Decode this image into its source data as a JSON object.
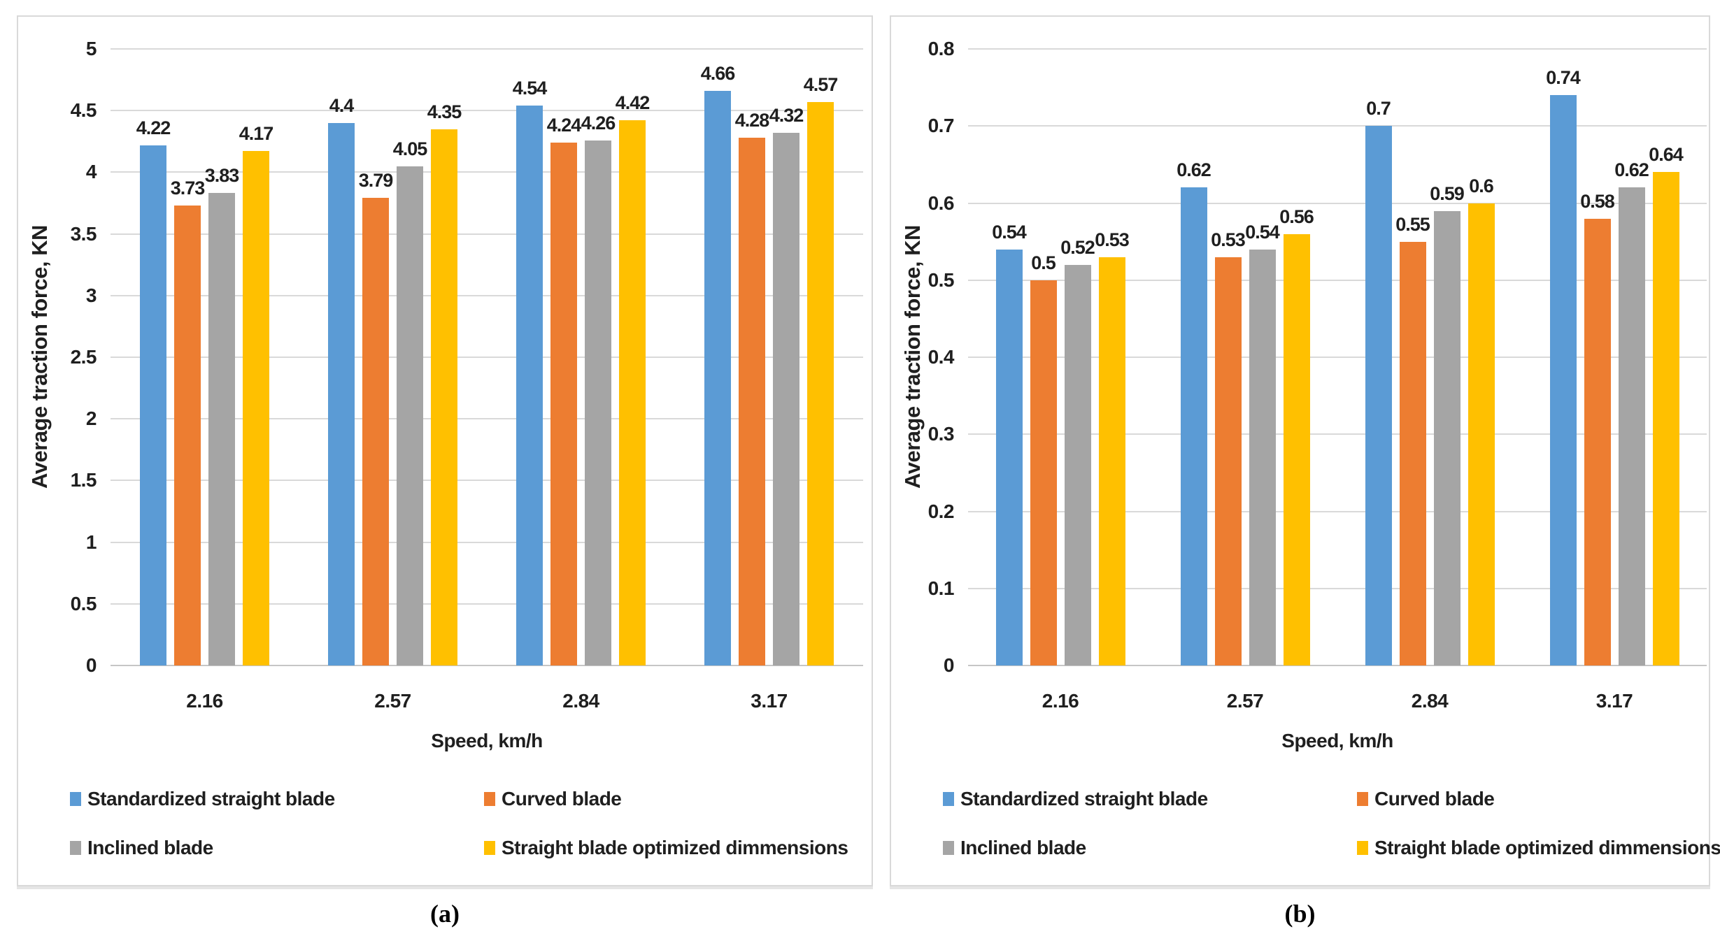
{
  "figure": {
    "caption_a": "(a)",
    "caption_b": "(b)"
  },
  "colors": {
    "series_blue": "#5B9BD5",
    "series_orange": "#ED7D31",
    "series_gray": "#A5A5A5",
    "series_yellow": "#FFC000",
    "gridline": "#D9D9D9",
    "panel_border": "#D9D9D9",
    "text": "#1F1F1F"
  },
  "chart_data": [
    {
      "id": "a",
      "type": "bar",
      "title": "",
      "xlabel": "Speed, km/h",
      "ylabel": "Average traction force, KN",
      "categories": [
        "2.16",
        "2.57",
        "2.84",
        "3.17"
      ],
      "series": [
        {
          "name": "Standardized straight blade",
          "color": "#5B9BD5",
          "values": [
            4.22,
            4.4,
            4.54,
            4.66
          ]
        },
        {
          "name": "Curved blade",
          "color": "#ED7D31",
          "values": [
            3.73,
            3.79,
            4.24,
            4.28
          ]
        },
        {
          "name": "Inclined blade",
          "color": "#A5A5A5",
          "values": [
            3.83,
            4.05,
            4.26,
            4.32
          ]
        },
        {
          "name": "Straight blade optimized dimmensions",
          "color": "#FFC000",
          "values": [
            4.17,
            4.35,
            4.42,
            4.57
          ]
        }
      ],
      "ylim": [
        0,
        5
      ],
      "yticks": [
        "0",
        "0.5",
        "1",
        "1.5",
        "2",
        "2.5",
        "3",
        "3.5",
        "4",
        "4.5",
        "5"
      ],
      "grid": true,
      "legend_position": "bottom",
      "data_labels": true
    },
    {
      "id": "b",
      "type": "bar",
      "title": "",
      "xlabel": "Speed, km/h",
      "ylabel": "Average traction force, KN",
      "categories": [
        "2.16",
        "2.57",
        "2.84",
        "3.17"
      ],
      "series": [
        {
          "name": "Standardized straight blade",
          "color": "#5B9BD5",
          "values": [
            0.54,
            0.62,
            0.7,
            0.74
          ]
        },
        {
          "name": "Curved blade",
          "color": "#ED7D31",
          "values": [
            0.5,
            0.53,
            0.55,
            0.58
          ]
        },
        {
          "name": "Inclined blade",
          "color": "#A5A5A5",
          "values": [
            0.52,
            0.54,
            0.59,
            0.62
          ]
        },
        {
          "name": "Straight blade optimized dimmensions",
          "color": "#FFC000",
          "values": [
            0.53,
            0.56,
            0.6,
            0.64
          ]
        }
      ],
      "ylim": [
        0,
        0.8
      ],
      "yticks": [
        "0",
        "0.1",
        "0.2",
        "0.3",
        "0.4",
        "0.5",
        "0.6",
        "0.7",
        "0.8"
      ],
      "grid": true,
      "legend_position": "bottom",
      "data_labels": true
    }
  ]
}
